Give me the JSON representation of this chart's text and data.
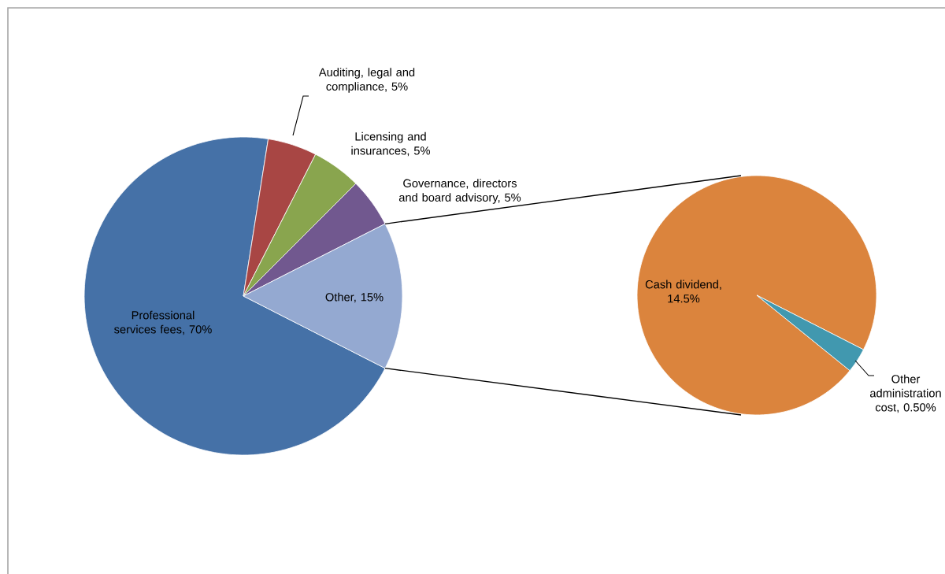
{
  "chart_data": [
    {
      "type": "pie",
      "categories": [
        "Professional services fees, 70%",
        "Auditing, legal and compliance, 5%",
        "Licensing and insurances, 5%",
        "Governance, directors and board advisory, 5%",
        "Other, 15%"
      ],
      "values": [
        70,
        5,
        5,
        5,
        15
      ],
      "colors": [
        "#4571a7",
        "#a84644",
        "#89a54e",
        "#71588f",
        "#94a9d1"
      ]
    },
    {
      "type": "pie",
      "categories": [
        "Cash dividend, 14.5%",
        "Other administration cost, 0.50%"
      ],
      "values": [
        14.5,
        0.5
      ],
      "colors": [
        "#db843d",
        "#4198af"
      ]
    }
  ]
}
